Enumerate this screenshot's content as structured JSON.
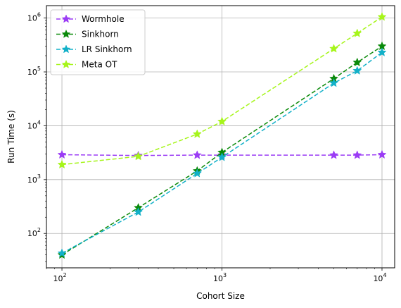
{
  "chart_data": {
    "type": "line",
    "xscale": "log",
    "yscale": "log",
    "xlabel": "Cohort Size",
    "ylabel": "Run Time (s)",
    "xlim": [
      80,
      12000
    ],
    "ylim": [
      23,
      1700000
    ],
    "grid": true,
    "legend_position": "top-left",
    "x_tick_labels": [
      {
        "value": 100,
        "base": "10",
        "exp": "2"
      },
      {
        "value": 1000,
        "base": "10",
        "exp": "3"
      },
      {
        "value": 10000,
        "base": "10",
        "exp": "4"
      }
    ],
    "y_tick_labels": [
      {
        "value": 100,
        "base": "10",
        "exp": "2"
      },
      {
        "value": 1000,
        "base": "10",
        "exp": "3"
      },
      {
        "value": 10000,
        "base": "10",
        "exp": "4"
      },
      {
        "value": 100000,
        "base": "10",
        "exp": "5"
      },
      {
        "value": 1000000,
        "base": "10",
        "exp": "6"
      }
    ],
    "series": [
      {
        "name": "Wormhole",
        "color": "#9b3cf5",
        "linestyle": "dashed",
        "marker": "star",
        "x": [
          100,
          300,
          700,
          1000,
          5000,
          7000,
          10000
        ],
        "y": [
          2900,
          2800,
          2850,
          2850,
          2850,
          2850,
          2900
        ]
      },
      {
        "name": "Sinkhorn",
        "color": "#0a8a0a",
        "linestyle": "dashed",
        "marker": "star",
        "x": [
          100,
          300,
          700,
          1000,
          5000,
          7000,
          10000
        ],
        "y": [
          40,
          300,
          1450,
          3200,
          75000,
          150000,
          300000
        ]
      },
      {
        "name": "LR Sinkhorn",
        "color": "#12b0c8",
        "linestyle": "dashed",
        "marker": "star",
        "x": [
          100,
          300,
          700,
          1000,
          5000,
          7000,
          10000
        ],
        "y": [
          43,
          250,
          1300,
          2600,
          62000,
          105000,
          230000
        ]
      },
      {
        "name": "Meta OT",
        "color": "#a6f51a",
        "linestyle": "dashed",
        "marker": "star",
        "x": [
          100,
          300,
          700,
          1000,
          5000,
          7000,
          10000
        ],
        "y": [
          1900,
          2700,
          7000,
          12000,
          270000,
          520000,
          1050000
        ]
      }
    ]
  }
}
